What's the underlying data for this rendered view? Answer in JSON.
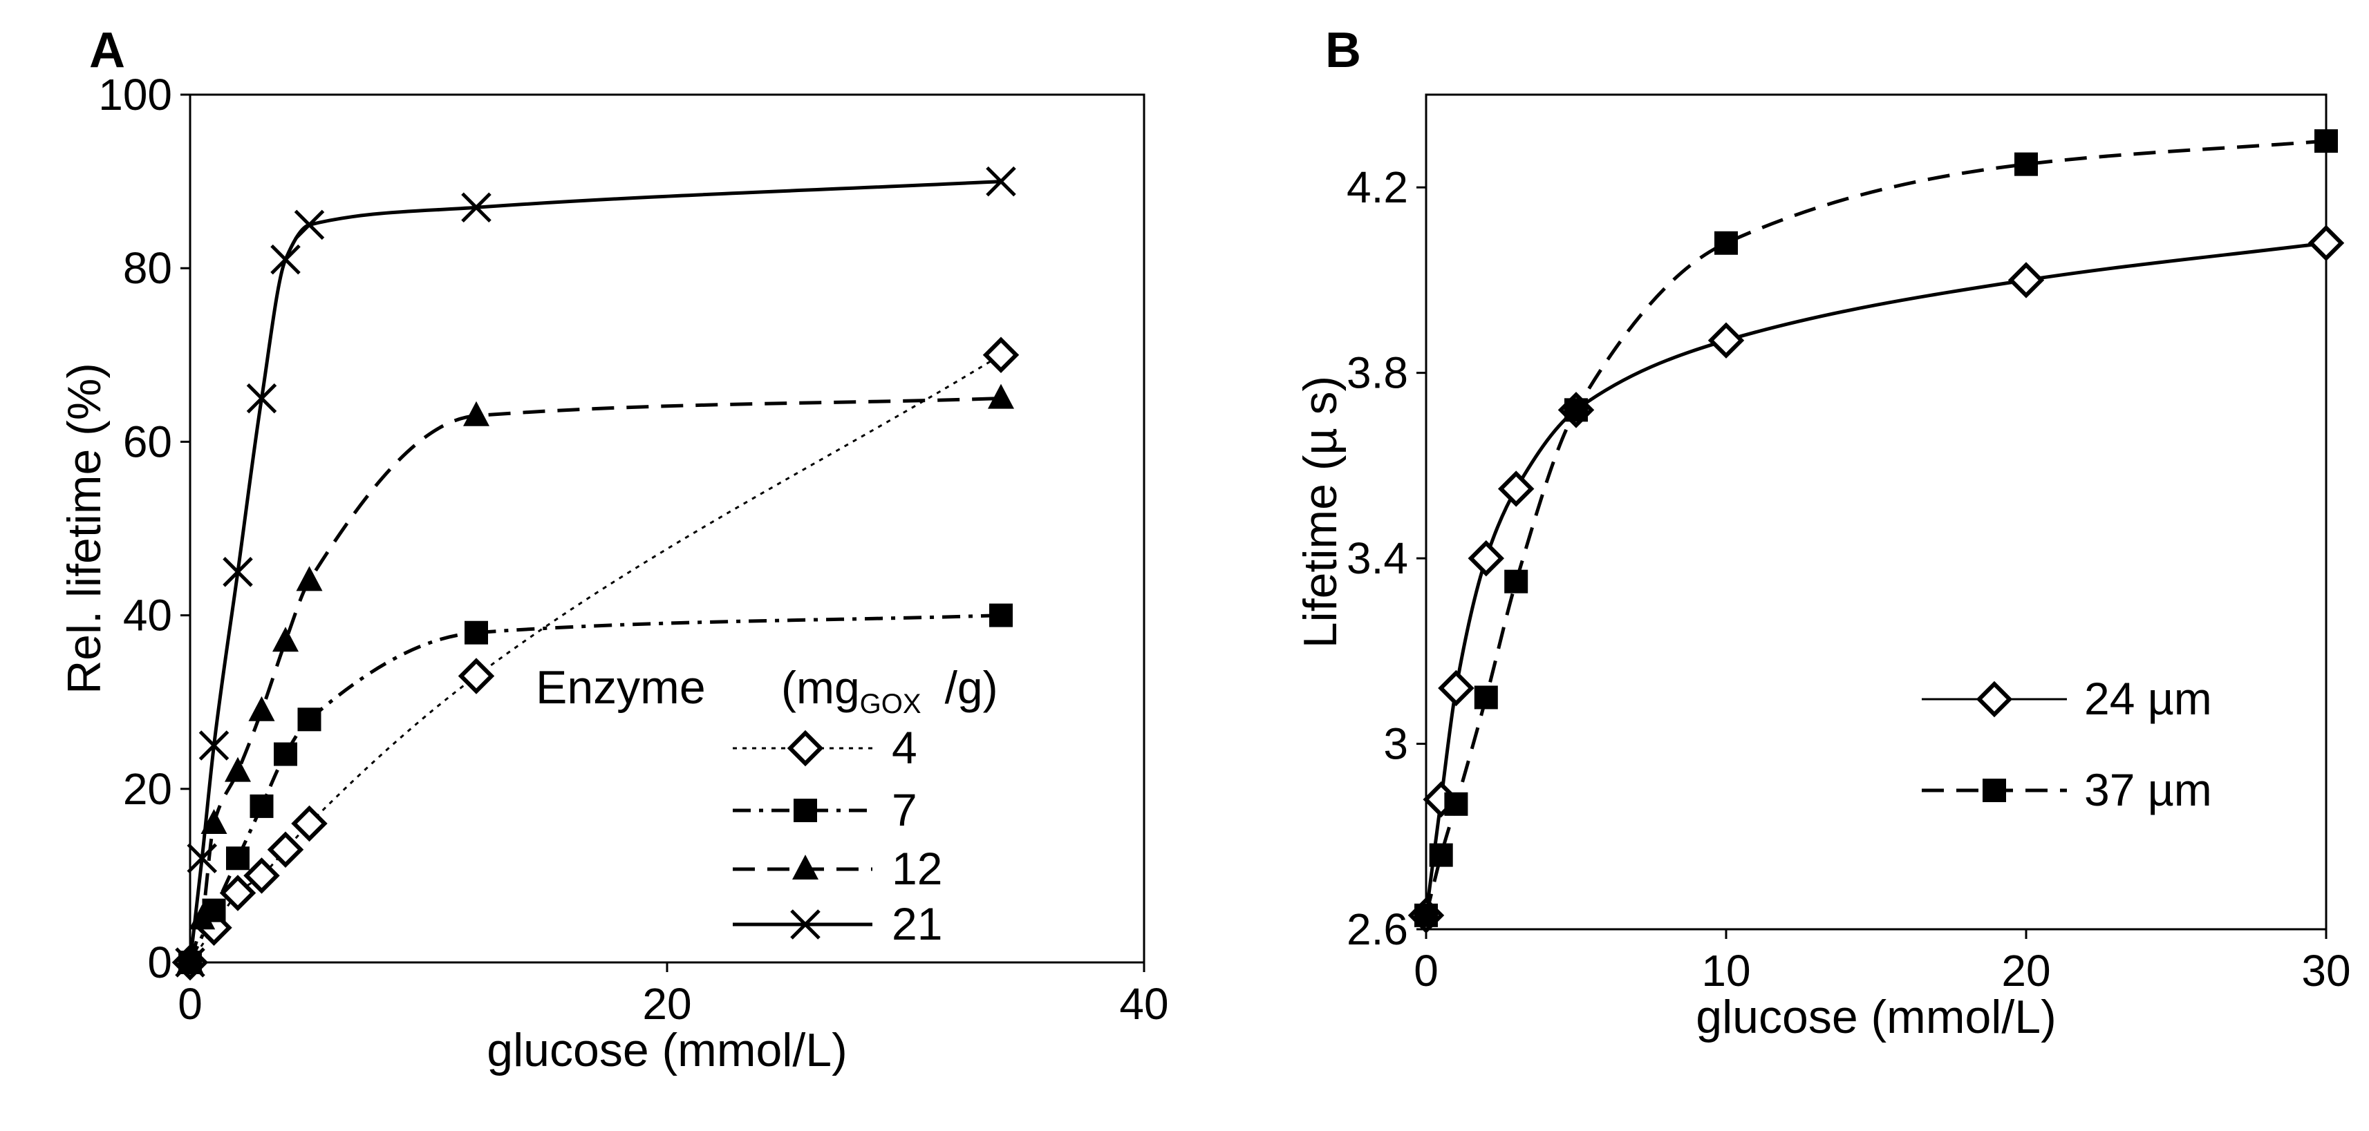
{
  "chart_data": [
    {
      "panel_label": "A",
      "type": "line",
      "xlabel": "glucose (mmol/L)",
      "ylabel": "Rel. lifetime (%)",
      "xlim": [
        0,
        40
      ],
      "ylim": [
        0,
        100
      ],
      "xticks": [
        0,
        20,
        40
      ],
      "yticks": [
        0,
        20,
        40,
        60,
        80,
        100
      ],
      "legend": {
        "title": "Enzyme",
        "unit_prefix": "(mg",
        "unit_subscript": "GOX",
        "unit_suffix": "/g)",
        "placement": "lower-right"
      },
      "series": [
        {
          "name": "4",
          "marker": "diamond-open",
          "line": "dotted",
          "color": "#000000",
          "x": [
            0,
            1,
            2,
            3,
            4,
            5,
            12,
            34
          ],
          "y": [
            0,
            4,
            8,
            10,
            13,
            16,
            33,
            70
          ]
        },
        {
          "name": "7",
          "marker": "square-filled",
          "line": "dash-dot",
          "color": "#000000",
          "x": [
            0,
            1,
            2,
            3,
            4,
            5,
            12,
            34
          ],
          "y": [
            0,
            6,
            12,
            18,
            24,
            28,
            38,
            40
          ]
        },
        {
          "name": "12",
          "marker": "triangle-filled",
          "line": "dashed",
          "color": "#000000",
          "x": [
            0,
            0.5,
            1,
            2,
            3,
            4,
            5,
            12,
            34
          ],
          "y": [
            0,
            5,
            16,
            22,
            29,
            37,
            44,
            63,
            65
          ]
        },
        {
          "name": "21",
          "marker": "x",
          "line": "solid",
          "color": "#000000",
          "x": [
            0,
            0.5,
            1,
            2,
            3,
            4,
            5,
            12,
            34
          ],
          "y": [
            0,
            12,
            25,
            45,
            65,
            81,
            85,
            87,
            90
          ]
        }
      ]
    },
    {
      "panel_label": "B",
      "type": "line",
      "xlabel": "glucose (mmol/L)",
      "ylabel": "Lifetime (µ s)",
      "xlim": [
        0,
        30
      ],
      "ylim": [
        2.6,
        4.4
      ],
      "xticks": [
        0,
        10,
        20,
        30
      ],
      "yticks": [
        2.6,
        3,
        3.4,
        3.8,
        4.2
      ],
      "ytick_labels": [
        "2.6",
        "3",
        "3.4",
        "3.8",
        "4.2"
      ],
      "legend": {
        "placement": "center-right"
      },
      "series": [
        {
          "name": "24 µm",
          "marker": "diamond-open",
          "line": "solid",
          "color": "#000000",
          "x": [
            0,
            0.5,
            1,
            2,
            3,
            5,
            10,
            20,
            30
          ],
          "y": [
            2.63,
            2.88,
            3.12,
            3.4,
            3.55,
            3.72,
            3.87,
            4.0,
            4.08
          ]
        },
        {
          "name": "37 µm",
          "marker": "square-filled",
          "line": "dashed",
          "color": "#000000",
          "x": [
            0,
            0.5,
            1,
            2,
            3,
            5,
            10,
            20,
            30
          ],
          "y": [
            2.63,
            2.76,
            2.87,
            3.1,
            3.35,
            3.72,
            4.08,
            4.25,
            4.3
          ]
        }
      ]
    }
  ]
}
